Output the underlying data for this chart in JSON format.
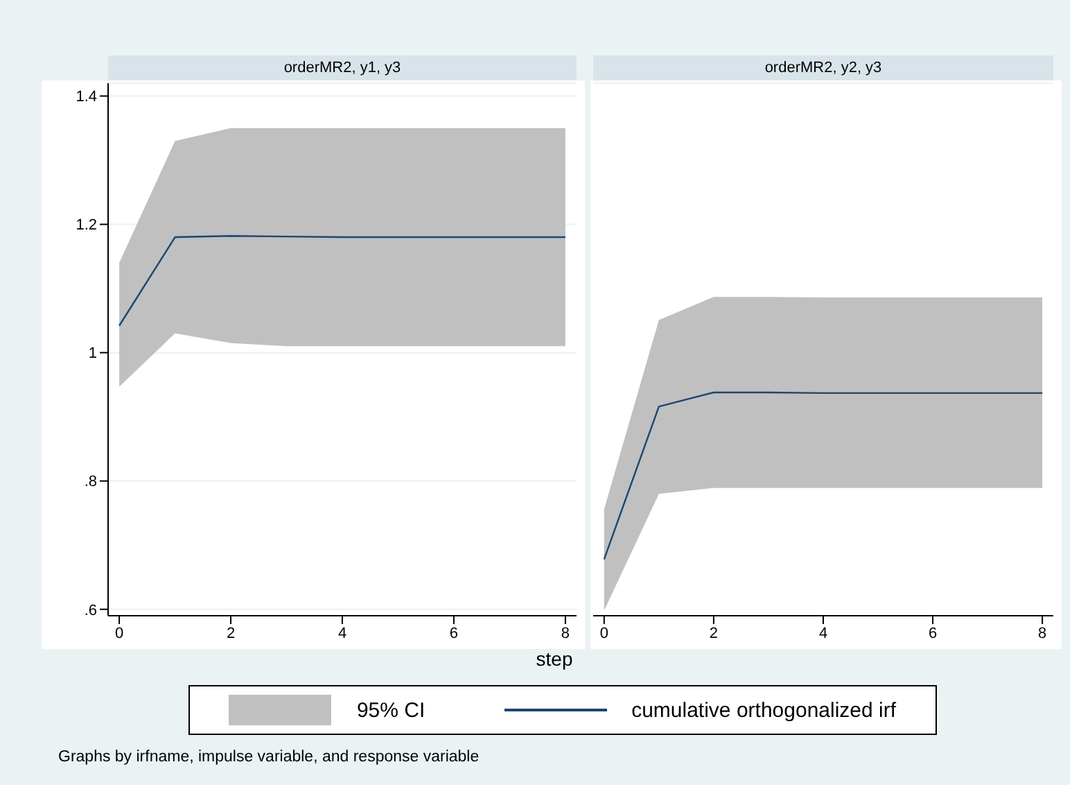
{
  "chart_data": [
    {
      "type": "line",
      "title": "orderMR2, y1, y3",
      "xlabel": "step",
      "x": [
        0,
        1,
        2,
        3,
        4,
        5,
        6,
        7,
        8
      ],
      "xlim": [
        -0.2,
        8.2
      ],
      "xticks": [
        0,
        2,
        4,
        6,
        8
      ],
      "ylim": [
        0.59,
        1.42
      ],
      "yticks": [
        {
          "value": 0.6,
          "label": ".6"
        },
        {
          "value": 0.8,
          "label": ".8"
        },
        1,
        1.2,
        1.4
      ],
      "grid": "y",
      "legend": "bottom",
      "annotations": [
        "95% CI",
        "Graphs by irfname, impulse variable, and response variable"
      ],
      "series": [
        {
          "name": "cumulative orthogonalized irf",
          "color": "#1a476f",
          "values": [
            1.042,
            1.18,
            1.182,
            1.181,
            1.18,
            1.18,
            1.18,
            1.18,
            1.18
          ],
          "lower": [
            0.947,
            1.03,
            1.015,
            1.01,
            1.01,
            1.01,
            1.01,
            1.01,
            1.01
          ],
          "upper": [
            1.14,
            1.33,
            1.35,
            1.35,
            1.35,
            1.35,
            1.35,
            1.35,
            1.35
          ]
        }
      ]
    },
    {
      "type": "line",
      "title": "orderMR2, y2, y3",
      "x": [
        0,
        1,
        2,
        3,
        4,
        5,
        6,
        7,
        8
      ],
      "xlim": [
        -0.2,
        8.2
      ],
      "xticks": [
        0,
        2,
        4,
        6,
        8
      ],
      "ylim": [
        0.59,
        1.42
      ],
      "yticks": [
        0.6,
        0.8,
        1,
        1.2,
        1.4
      ],
      "grid": "y",
      "tick_labels": "x",
      "series": [
        {
          "color": "#1a476f",
          "values": [
            0.678,
            0.916,
            0.938,
            0.938,
            0.937,
            0.937,
            0.937,
            0.937,
            0.937
          ],
          "lower": [
            0.598,
            0.78,
            0.789,
            0.789,
            0.789,
            0.789,
            0.789,
            0.789,
            0.789
          ],
          "upper": [
            0.756,
            1.051,
            1.087,
            1.087,
            1.086,
            1.086,
            1.086,
            1.086,
            1.086
          ]
        }
      ]
    }
  ]
}
